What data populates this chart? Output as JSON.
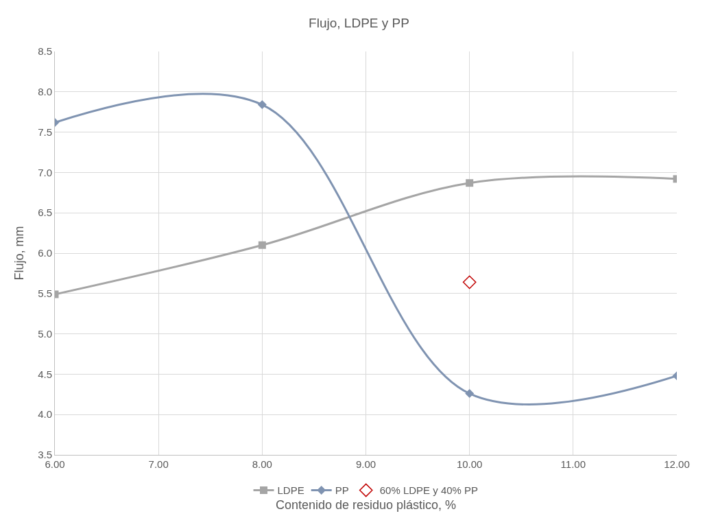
{
  "chart_data": {
    "type": "line",
    "title": "Flujo, LDPE y PP",
    "xlabel": "Contenido de residuo plástico, %",
    "ylabel": "Flujo, mm",
    "series": [
      {
        "name": "LDPE",
        "color": "#a5a5a5",
        "marker": "square",
        "x": [
          6,
          8,
          10,
          12
        ],
        "values": [
          5.49,
          6.1,
          6.87,
          6.92
        ]
      },
      {
        "name": "PP",
        "color": "#7f93b1",
        "marker": "diamond",
        "x": [
          6,
          8,
          10,
          12
        ],
        "values": [
          7.62,
          7.84,
          4.26,
          4.48
        ]
      },
      {
        "name": "60% LDPE y 40% PP",
        "color": "#c00000",
        "type": "scatter",
        "marker": "diamond",
        "x": [
          10
        ],
        "values": [
          5.64
        ]
      }
    ],
    "xlim": [
      6,
      12
    ],
    "xticks": [
      {
        "value": 6,
        "label": "6.00"
      },
      {
        "value": 7,
        "label": "7.00"
      },
      {
        "value": 8,
        "label": "8.00"
      },
      {
        "value": 9,
        "label": "9.00"
      },
      {
        "value": 10,
        "label": "10.00"
      },
      {
        "value": 11,
        "label": "11.00"
      },
      {
        "value": 12,
        "label": "12.00"
      }
    ],
    "ylim": [
      3.5,
      8.5
    ],
    "yticks": [
      {
        "value": 3.5,
        "label": "3.5"
      },
      {
        "value": 4,
        "label": "4.0"
      },
      {
        "value": 4.5,
        "label": "4.5"
      },
      {
        "value": 5,
        "label": "5.0"
      },
      {
        "value": 5.5,
        "label": "5.5"
      },
      {
        "value": 6,
        "label": "6.0"
      },
      {
        "value": 6.5,
        "label": "6.5"
      },
      {
        "value": 7,
        "label": "7.0"
      },
      {
        "value": 7.5,
        "label": "7.5"
      },
      {
        "value": 8,
        "label": "8.0"
      },
      {
        "value": 8.5,
        "label": "8.5"
      }
    ],
    "grid": true,
    "legend": "bottom"
  }
}
